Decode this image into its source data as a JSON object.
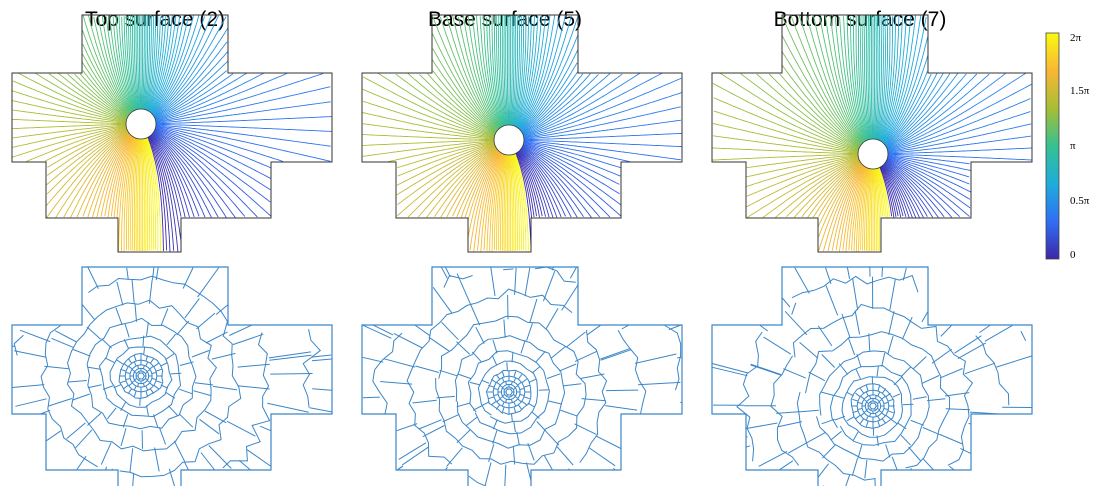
{
  "panels": [
    {
      "title": "Top surface (2)",
      "hole": [
        141,
        124
      ],
      "outline": [
        [
          82,
          15
        ],
        [
          228,
          15
        ],
        [
          228,
          73
        ],
        [
          332,
          73
        ],
        [
          332,
          162
        ],
        [
          271,
          162
        ],
        [
          271,
          218
        ],
        [
          181,
          218
        ],
        [
          181,
          252
        ],
        [
          118,
          252
        ],
        [
          118,
          218
        ],
        [
          46,
          218
        ],
        [
          46,
          162
        ],
        [
          12,
          162
        ],
        [
          12,
          73
        ],
        [
          82,
          73
        ]
      ]
    },
    {
      "title": "Base surface (5)",
      "hole": [
        509,
        140
      ],
      "outline": [
        [
          432,
          15
        ],
        [
          578,
          15
        ],
        [
          578,
          73
        ],
        [
          682,
          73
        ],
        [
          682,
          162
        ],
        [
          621,
          162
        ],
        [
          621,
          218
        ],
        [
          531,
          218
        ],
        [
          531,
          252
        ],
        [
          468,
          252
        ],
        [
          468,
          218
        ],
        [
          396,
          218
        ],
        [
          396,
          162
        ],
        [
          362,
          162
        ],
        [
          362,
          73
        ],
        [
          432,
          73
        ]
      ]
    },
    {
      "title": "Bottom surface (7)",
      "hole": [
        873,
        154
      ],
      "outline": [
        [
          782,
          15
        ],
        [
          928,
          15
        ],
        [
          928,
          73
        ],
        [
          1032,
          73
        ],
        [
          1032,
          162
        ],
        [
          971,
          162
        ],
        [
          971,
          218
        ],
        [
          881,
          218
        ],
        [
          881,
          252
        ],
        [
          818,
          252
        ],
        [
          818,
          218
        ],
        [
          746,
          218
        ],
        [
          746,
          162
        ],
        [
          712,
          162
        ],
        [
          712,
          73
        ],
        [
          782,
          73
        ]
      ]
    }
  ],
  "colorbar": {
    "ticks": [
      "2π",
      "1.5π",
      "π",
      "0.5π",
      "0"
    ],
    "colormap": [
      "#3e26a8",
      "#2f6ff4",
      "#1eaddb",
      "#35c191",
      "#a6be35",
      "#f9b634",
      "#f9fb0e"
    ]
  },
  "mesh_color": "#3a86c8"
}
